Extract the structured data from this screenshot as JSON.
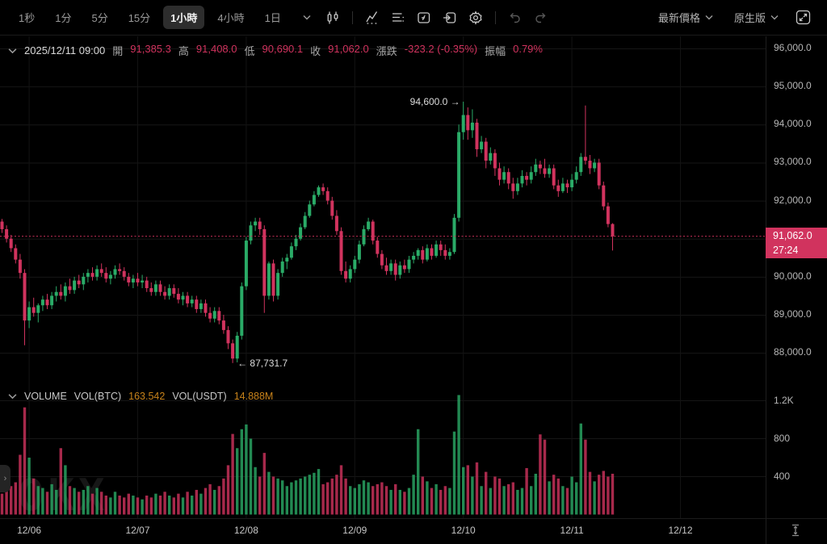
{
  "toolbar": {
    "intervals": [
      {
        "label": "1秒",
        "active": false
      },
      {
        "label": "1分",
        "active": false
      },
      {
        "label": "5分",
        "active": false
      },
      {
        "label": "15分",
        "active": false
      },
      {
        "label": "1小時",
        "active": true
      },
      {
        "label": "4小時",
        "active": false
      },
      {
        "label": "1日",
        "active": false
      }
    ],
    "right": {
      "price_mode": "最新價格",
      "version": "原生版"
    }
  },
  "ohlc_bar": {
    "timestamp": "2025/12/11 09:00",
    "fields": [
      {
        "key": "open",
        "label": "開",
        "value": "91,385.3"
      },
      {
        "key": "high",
        "label": "高",
        "value": "91,408.0"
      },
      {
        "key": "low",
        "label": "低",
        "value": "90,690.1"
      },
      {
        "key": "close",
        "label": "收",
        "value": "91,062.0"
      },
      {
        "key": "change",
        "label": "漲跌",
        "value": "-323.2 (-0.35%)"
      },
      {
        "key": "amplitude",
        "label": "振幅",
        "value": "0.79%"
      }
    ]
  },
  "volume_header": {
    "title": "VOLUME",
    "vol_btc_label": "VOL(BTC)",
    "vol_btc_value": "163.542",
    "vol_usdt_label": "VOL(USDT)",
    "vol_usdt_value": "14.888M"
  },
  "price_axis": {
    "labels": [
      {
        "text": "96,000.0",
        "price": 96000
      },
      {
        "text": "95,000.0",
        "price": 95000
      },
      {
        "text": "94,000.0",
        "price": 94000
      },
      {
        "text": "93,000.0",
        "price": 93000
      },
      {
        "text": "92,000.0",
        "price": 92000
      },
      {
        "text": "90,000.0",
        "price": 90000
      },
      {
        "text": "89,000.0",
        "price": 89000
      },
      {
        "text": "88,000.0",
        "price": 88000
      }
    ]
  },
  "volume_axis": {
    "labels": [
      {
        "text": "1.2K",
        "value": 1200
      },
      {
        "text": "800",
        "value": 800
      },
      {
        "text": "400",
        "value": 400
      }
    ]
  },
  "last_price": {
    "value": "91,062.0",
    "countdown": "27:24",
    "price": 91062.0
  },
  "annotations": {
    "high": {
      "text": "94,600.0",
      "arrow": "→",
      "price": 94600.0,
      "candle_index": 102
    },
    "low": {
      "text": "87,731.7",
      "arrow": "←",
      "price": 87731.7,
      "candle_index": 51
    }
  },
  "x_axis": {
    "dates": [
      {
        "label": "12/06",
        "candle_index": 6
      },
      {
        "label": "12/07",
        "candle_index": 30
      },
      {
        "label": "12/08",
        "candle_index": 54
      },
      {
        "label": "12/09",
        "candle_index": 78
      },
      {
        "label": "12/10",
        "candle_index": 102
      },
      {
        "label": "12/11",
        "candle_index": 126
      },
      {
        "label": "12/12",
        "candle_index": 150
      }
    ]
  },
  "watermark": {
    "text": "OKX"
  },
  "colors": {
    "up": "#2aab67",
    "down": "#d1335e",
    "badge": "#d1335e",
    "value_orange": "#c7821a"
  },
  "chart_data": {
    "type": "candlestick",
    "interval": "1小時",
    "price_axis_ticks": [
      88000,
      89000,
      90000,
      91000,
      92000,
      93000,
      94000,
      95000,
      96000
    ],
    "volume_axis_ticks": [
      400,
      800,
      1200
    ],
    "last_price": 91062.0,
    "high_point": 94600.0,
    "low_point": 87731.7,
    "candles": [
      [
        91450,
        91520,
        91150,
        91250,
        220
      ],
      [
        91250,
        91350,
        90900,
        91000,
        260
      ],
      [
        91000,
        91100,
        90650,
        90750,
        300
      ],
      [
        90750,
        90850,
        90350,
        90450,
        340
      ],
      [
        90450,
        90600,
        89950,
        90100,
        630
      ],
      [
        90100,
        90200,
        88200,
        88850,
        1130
      ],
      [
        88850,
        89350,
        88650,
        89200,
        600
      ],
      [
        89200,
        89450,
        88950,
        89050,
        380
      ],
      [
        89050,
        89300,
        88800,
        89250,
        300
      ],
      [
        89250,
        89500,
        89100,
        89400,
        280
      ],
      [
        89400,
        89550,
        89150,
        89250,
        240
      ],
      [
        89250,
        89600,
        89150,
        89500,
        320
      ],
      [
        89500,
        89750,
        89350,
        89600,
        260
      ],
      [
        89600,
        89800,
        89400,
        89500,
        700
      ],
      [
        89500,
        89850,
        89350,
        89750,
        520
      ],
      [
        89750,
        89950,
        89550,
        89650,
        300
      ],
      [
        89650,
        90000,
        89550,
        89900,
        280
      ],
      [
        89900,
        90050,
        89700,
        89800,
        240
      ],
      [
        89800,
        90100,
        89650,
        90000,
        260
      ],
      [
        90000,
        90200,
        89850,
        90100,
        300
      ],
      [
        90100,
        90250,
        89900,
        90000,
        220
      ],
      [
        90000,
        90300,
        89900,
        90200,
        280
      ],
      [
        90200,
        90350,
        90000,
        90100,
        240
      ],
      [
        90100,
        90250,
        89850,
        89950,
        200
      ],
      [
        89950,
        90150,
        89800,
        90050,
        180
      ],
      [
        90050,
        90300,
        89950,
        90200,
        240
      ],
      [
        90200,
        90350,
        90050,
        90150,
        200
      ],
      [
        90150,
        90250,
        89900,
        90000,
        180
      ],
      [
        90000,
        90100,
        89750,
        89850,
        220
      ],
      [
        89850,
        90050,
        89700,
        89950,
        200
      ],
      [
        89950,
        90100,
        89750,
        89850,
        180
      ],
      [
        89850,
        90050,
        89700,
        89900,
        160
      ],
      [
        89900,
        90000,
        89600,
        89700,
        200
      ],
      [
        89700,
        89850,
        89500,
        89600,
        180
      ],
      [
        89600,
        89900,
        89500,
        89800,
        220
      ],
      [
        89800,
        89900,
        89500,
        89600,
        200
      ],
      [
        89600,
        89750,
        89400,
        89500,
        240
      ],
      [
        89500,
        89800,
        89400,
        89700,
        200
      ],
      [
        89700,
        89800,
        89450,
        89550,
        180
      ],
      [
        89550,
        89700,
        89300,
        89400,
        220
      ],
      [
        89400,
        89600,
        89250,
        89500,
        180
      ],
      [
        89500,
        89600,
        89200,
        89300,
        240
      ],
      [
        89300,
        89500,
        89200,
        89400,
        200
      ],
      [
        89400,
        89500,
        89050,
        89150,
        260
      ],
      [
        89150,
        89400,
        89050,
        89300,
        220
      ],
      [
        89300,
        89400,
        88950,
        89050,
        280
      ],
      [
        89050,
        89200,
        88800,
        88900,
        320
      ],
      [
        88900,
        89200,
        88800,
        89100,
        260
      ],
      [
        89100,
        89200,
        88750,
        88850,
        300
      ],
      [
        88850,
        89000,
        88500,
        88600,
        380
      ],
      [
        88600,
        88700,
        88100,
        88250,
        520
      ],
      [
        88250,
        88350,
        87731.7,
        87850,
        850
      ],
      [
        87850,
        88550,
        87750,
        88450,
        700
      ],
      [
        88450,
        89850,
        88350,
        89750,
        900
      ],
      [
        89750,
        91050,
        89650,
        90950,
        950
      ],
      [
        90950,
        91450,
        90850,
        91350,
        800
      ],
      [
        91350,
        91550,
        91200,
        91450,
        500
      ],
      [
        91450,
        91550,
        91100,
        91250,
        400
      ],
      [
        91250,
        91350,
        89050,
        89500,
        650
      ],
      [
        89500,
        90400,
        89400,
        90350,
        450
      ],
      [
        90350,
        90450,
        89350,
        89500,
        400
      ],
      [
        89500,
        90200,
        89400,
        90100,
        380
      ],
      [
        90100,
        90500,
        90000,
        90400,
        360
      ],
      [
        90400,
        90600,
        90200,
        90500,
        300
      ],
      [
        90500,
        90900,
        90450,
        90800,
        340
      ],
      [
        90800,
        91100,
        90700,
        91000,
        360
      ],
      [
        91000,
        91400,
        90950,
        91300,
        380
      ],
      [
        91300,
        91700,
        91250,
        91600,
        400
      ],
      [
        91600,
        92000,
        91550,
        91900,
        420
      ],
      [
        91900,
        92250,
        91850,
        92150,
        440
      ],
      [
        92150,
        92400,
        92100,
        92350,
        480
      ],
      [
        92350,
        92450,
        92150,
        92250,
        320
      ],
      [
        92250,
        92350,
        91900,
        92000,
        340
      ],
      [
        92000,
        92100,
        91500,
        91600,
        380
      ],
      [
        91600,
        91750,
        91100,
        91200,
        420
      ],
      [
        91200,
        91300,
        90050,
        90150,
        520
      ],
      [
        90150,
        90400,
        89850,
        89950,
        380
      ],
      [
        89950,
        90300,
        89850,
        90200,
        300
      ],
      [
        90200,
        90550,
        90100,
        90450,
        280
      ],
      [
        90450,
        90950,
        90350,
        90850,
        320
      ],
      [
        90850,
        91350,
        90800,
        91250,
        360
      ],
      [
        91250,
        91550,
        91200,
        91450,
        340
      ],
      [
        91450,
        91500,
        90850,
        90950,
        300
      ],
      [
        90950,
        91050,
        90500,
        90600,
        320
      ],
      [
        90600,
        90700,
        90200,
        90300,
        340
      ],
      [
        90300,
        90500,
        90050,
        90150,
        300
      ],
      [
        90150,
        90450,
        90050,
        90350,
        260
      ],
      [
        90350,
        90450,
        89900,
        90050,
        320
      ],
      [
        90050,
        90400,
        89950,
        90300,
        260
      ],
      [
        90300,
        90450,
        90100,
        90200,
        240
      ],
      [
        90200,
        90550,
        90100,
        90450,
        280
      ],
      [
        90450,
        90650,
        90350,
        90550,
        420
      ],
      [
        90550,
        90750,
        90450,
        90700,
        900
      ],
      [
        90700,
        90800,
        90350,
        90450,
        400
      ],
      [
        90450,
        90850,
        90400,
        90750,
        350
      ],
      [
        90750,
        90850,
        90450,
        90550,
        280
      ],
      [
        90550,
        90950,
        90500,
        90850,
        320
      ],
      [
        90850,
        90950,
        90550,
        90700,
        260
      ],
      [
        90700,
        90850,
        90450,
        90550,
        300
      ],
      [
        90550,
        90750,
        90450,
        90650,
        280
      ],
      [
        90650,
        91650,
        90600,
        91550,
        875
      ],
      [
        91550,
        94000,
        91450,
        93800,
        1260
      ],
      [
        93800,
        94600,
        93600,
        94250,
        500
      ],
      [
        94250,
        94450,
        93600,
        93850,
        520
      ],
      [
        93850,
        94400,
        93650,
        94050,
        400
      ],
      [
        94050,
        94150,
        93150,
        93350,
        550
      ],
      [
        93350,
        93700,
        93250,
        93550,
        300
      ],
      [
        93550,
        93650,
        92850,
        93050,
        450
      ],
      [
        93050,
        93400,
        92950,
        93250,
        280
      ],
      [
        93250,
        93350,
        92650,
        92850,
        400
      ],
      [
        92850,
        93000,
        92400,
        92550,
        380
      ],
      [
        92550,
        92900,
        92450,
        92750,
        300
      ],
      [
        92750,
        92850,
        92300,
        92450,
        320
      ],
      [
        92450,
        92600,
        92050,
        92250,
        340
      ],
      [
        92250,
        92600,
        92150,
        92450,
        260
      ],
      [
        92450,
        92800,
        92350,
        92650,
        280
      ],
      [
        92650,
        92750,
        92400,
        92550,
        490
      ],
      [
        92550,
        92900,
        92450,
        92750,
        300
      ],
      [
        92750,
        93100,
        92650,
        92950,
        430
      ],
      [
        92950,
        93050,
        92700,
        92850,
        845
      ],
      [
        92850,
        93100,
        92600,
        92700,
        790
      ],
      [
        92700,
        92950,
        92600,
        92850,
        350
      ],
      [
        92850,
        92950,
        92300,
        92400,
        420
      ],
      [
        92400,
        92550,
        92100,
        92250,
        380
      ],
      [
        92250,
        92600,
        92200,
        92450,
        300
      ],
      [
        92450,
        92550,
        92200,
        92350,
        280
      ],
      [
        92350,
        92700,
        92250,
        92550,
        400
      ],
      [
        92550,
        92900,
        92450,
        92750,
        340
      ],
      [
        92750,
        93250,
        92650,
        93150,
        960
      ],
      [
        93150,
        94500,
        92950,
        93050,
        790
      ],
      [
        93050,
        93200,
        92700,
        92850,
        450
      ],
      [
        92850,
        93100,
        92750,
        93000,
        350
      ],
      [
        93000,
        93100,
        92300,
        92400,
        420
      ],
      [
        92400,
        92500,
        91750,
        91850,
        460
      ],
      [
        91850,
        91950,
        91300,
        91385,
        400
      ],
      [
        91385.3,
        91408.0,
        90690.1,
        91062.0,
        430
      ]
    ]
  }
}
